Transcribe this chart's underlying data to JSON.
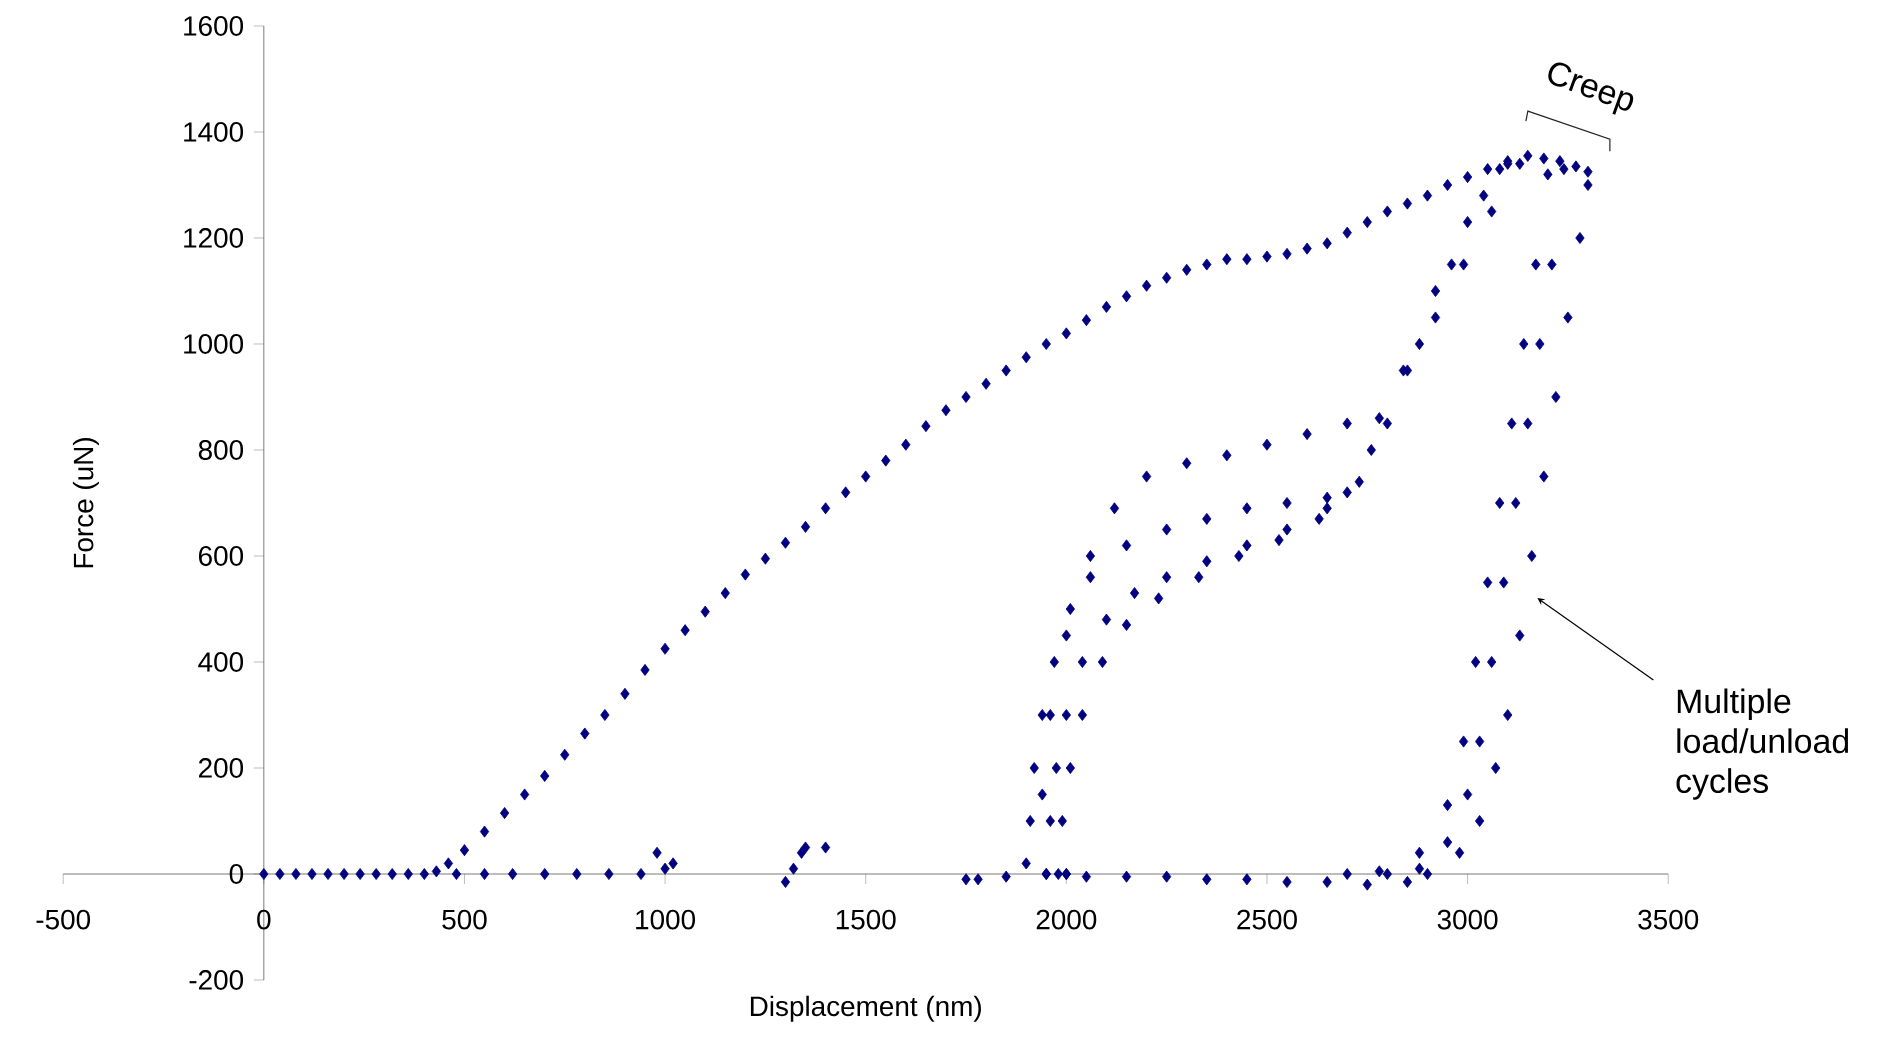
{
  "chart_data": {
    "type": "scatter",
    "xlabel": "Displacement (nm)",
    "ylabel": "Force (uN)",
    "xlim": [
      -500,
      3500
    ],
    "ylim": [
      -200,
      1600
    ],
    "xticks": [
      -500,
      0,
      500,
      1000,
      1500,
      2000,
      2500,
      3000,
      3500
    ],
    "yticks": [
      -200,
      0,
      200,
      400,
      600,
      800,
      1000,
      1200,
      1400,
      1600
    ],
    "marker": "diamond",
    "series": [
      {
        "color": "#000080",
        "x": [
          0,
          40,
          80,
          120,
          160,
          200,
          240,
          280,
          320,
          360,
          400,
          430,
          460,
          500,
          550,
          600,
          650,
          700,
          750,
          800,
          850,
          900,
          950,
          1000,
          1050,
          1100,
          1150,
          1200,
          1250,
          1300,
          1350,
          1400,
          1450,
          1500,
          1550,
          1600,
          1650,
          1700,
          1750,
          1800,
          1850,
          1900,
          1950,
          2000,
          2050,
          2100,
          2150,
          2200,
          2250,
          2300,
          2350,
          2400,
          2450,
          2500,
          2550,
          2600,
          2650,
          2700,
          2750,
          2800,
          2850,
          2900,
          2950,
          3000,
          3050,
          3100,
          3150,
          3190,
          3230,
          3270,
          3300,
          3300,
          3280,
          3250,
          3220,
          3190,
          3160,
          3130,
          3100,
          3070,
          3030,
          2980,
          2900,
          2850,
          2750,
          2650,
          2550,
          2450,
          2350,
          2250,
          2150,
          2050,
          2000,
          1950,
          1900,
          1910,
          1920,
          1940,
          1970,
          2010,
          2060,
          2120,
          2200,
          2300,
          2400,
          2500,
          2600,
          2700,
          2780,
          2850,
          2920,
          2990,
          3060,
          3130,
          3240,
          3210,
          3180,
          3150,
          3120,
          3090,
          3060,
          3030,
          3000,
          2950,
          2880,
          2800,
          1980,
          1960,
          1975,
          2000,
          2040,
          2100,
          2170,
          2250,
          2350,
          2450,
          2550,
          2650,
          2730,
          2800,
          2880,
          2960,
          3040,
          3100,
          3200,
          3170,
          3140,
          3110,
          3080,
          3050,
          3020,
          2990,
          2950,
          2880,
          2780,
          2700,
          2000,
          1990,
          2010,
          2040,
          2090,
          2150,
          2230,
          2330,
          2430,
          2530,
          2630,
          2700,
          2760,
          2840,
          2920,
          3000,
          3080,
          1950,
          1940,
          1960,
          2000,
          2060,
          2150,
          2250,
          2350,
          2450,
          2550,
          2650,
          980,
          1000,
          1020,
          1300,
          1320,
          1340,
          1350,
          1400,
          1750,
          1780,
          1850,
          480,
          550,
          620,
          700,
          780,
          860,
          940
        ],
        "values": [
          0,
          0,
          0,
          0,
          0,
          0,
          0,
          0,
          0,
          0,
          0,
          5,
          20,
          45,
          80,
          115,
          150,
          185,
          225,
          265,
          300,
          340,
          385,
          425,
          460,
          495,
          530,
          565,
          595,
          625,
          655,
          690,
          720,
          750,
          780,
          810,
          845,
          875,
          900,
          925,
          950,
          975,
          1000,
          1020,
          1045,
          1070,
          1090,
          1110,
          1125,
          1140,
          1150,
          1160,
          1160,
          1165,
          1170,
          1180,
          1190,
          1210,
          1230,
          1250,
          1265,
          1280,
          1300,
          1315,
          1330,
          1345,
          1355,
          1350,
          1345,
          1335,
          1325,
          1300,
          1200,
          1050,
          900,
          750,
          600,
          450,
          300,
          200,
          100,
          40,
          0,
          -15,
          -20,
          -15,
          -15,
          -10,
          -10,
          -5,
          -5,
          -5,
          0,
          0,
          20,
          100,
          200,
          300,
          400,
          500,
          600,
          690,
          750,
          775,
          790,
          810,
          830,
          850,
          860,
          950,
          1050,
          1150,
          1250,
          1340,
          1330,
          1150,
          1000,
          850,
          700,
          550,
          400,
          250,
          150,
          60,
          10,
          0,
          0,
          100,
          200,
          300,
          400,
          480,
          530,
          560,
          590,
          620,
          650,
          690,
          740,
          850,
          1000,
          1150,
          1280,
          1340,
          1320,
          1150,
          1000,
          850,
          700,
          550,
          400,
          250,
          130,
          40,
          5,
          0,
          0,
          100,
          200,
          300,
          400,
          470,
          520,
          560,
          600,
          630,
          670,
          720,
          800,
          950,
          1100,
          1230,
          1330,
          0,
          150,
          300,
          450,
          560,
          620,
          650,
          670,
          690,
          700,
          710,
          40,
          10,
          20,
          -15,
          10,
          40,
          50,
          50,
          -10,
          -10,
          -5,
          0,
          0,
          0,
          0,
          0,
          0,
          0
        ]
      }
    ],
    "annotations": [
      {
        "text": "Creep",
        "x": 3230,
        "y": 1345
      },
      "Multiple load/unload cycles"
    ]
  }
}
